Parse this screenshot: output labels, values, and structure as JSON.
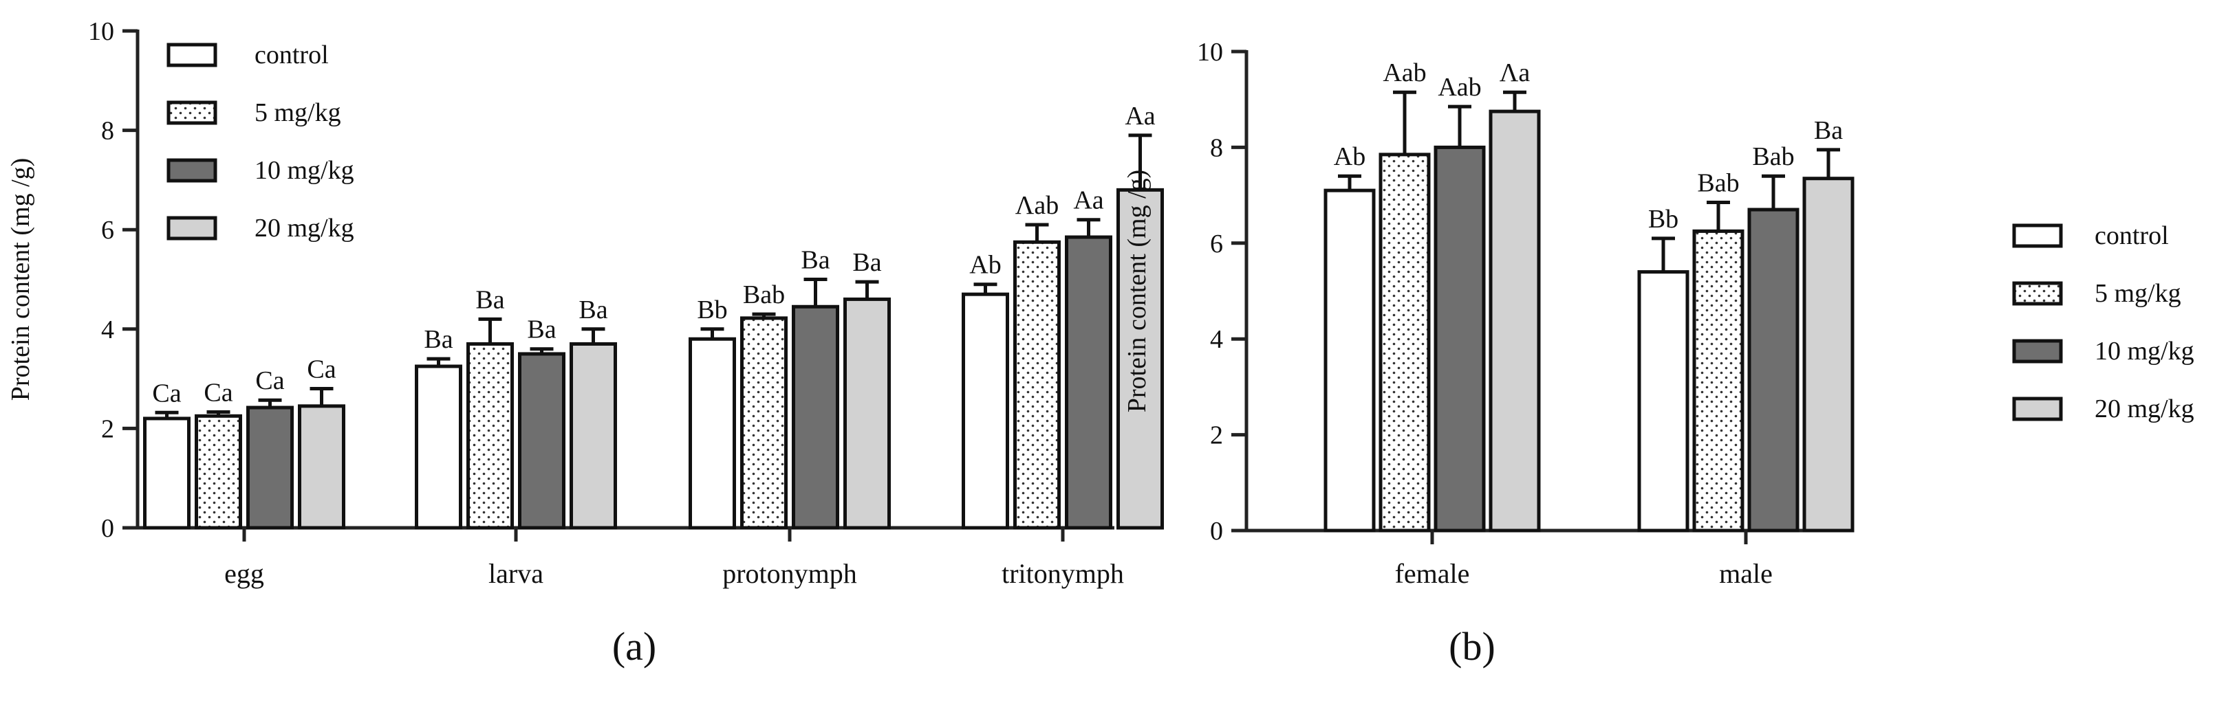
{
  "chart_data": [
    {
      "type": "bar",
      "panel_label": "(a)",
      "ylabel": "Protein content (mg /g)",
      "xlabel": "",
      "ylim": [
        0,
        10
      ],
      "yticks": [
        "0",
        "2",
        "4",
        "6",
        "8",
        "10"
      ],
      "legend_position": "top-left",
      "categories": [
        "egg",
        "larva",
        "protonymph",
        "tritonymph"
      ],
      "series": [
        {
          "name": "control",
          "values": [
            2.2,
            3.25,
            3.8,
            4.7
          ],
          "errors": [
            0.12,
            0.15,
            0.2,
            0.2
          ],
          "labels": [
            "Ca",
            "Ba",
            "Bb",
            "Ab"
          ]
        },
        {
          "name": "5 mg/kg",
          "values": [
            2.25,
            3.7,
            4.22,
            5.75
          ],
          "errors": [
            0.08,
            0.5,
            0.08,
            0.35
          ],
          "labels": [
            "Ca",
            "Ba",
            "Bab",
            "Λab"
          ]
        },
        {
          "name": "10 mg/kg",
          "values": [
            2.42,
            3.5,
            4.45,
            5.85
          ],
          "errors": [
            0.15,
            0.1,
            0.55,
            0.35
          ],
          "labels": [
            "Ca",
            "Ba",
            "Ba",
            "Aa"
          ]
        },
        {
          "name": "20 mg/kg",
          "values": [
            2.45,
            3.7,
            4.6,
            6.8
          ],
          "errors": [
            0.35,
            0.3,
            0.35,
            1.1
          ],
          "labels": [
            "Ca",
            "Ba",
            "Ba",
            "Aa"
          ]
        }
      ]
    },
    {
      "type": "bar",
      "panel_label": "(b)",
      "ylabel": "Protein content (mg /g)",
      "xlabel": "",
      "ylim": [
        0,
        10
      ],
      "yticks": [
        "0",
        "2",
        "4",
        "6",
        "8",
        "10"
      ],
      "legend_position": "right",
      "categories": [
        "female",
        "male"
      ],
      "series": [
        {
          "name": "control",
          "values": [
            7.1,
            5.4
          ],
          "errors": [
            0.3,
            0.7
          ],
          "labels": [
            "Ab",
            "Bb"
          ]
        },
        {
          "name": "5 mg/kg",
          "values": [
            7.85,
            6.25
          ],
          "errors": [
            1.3,
            0.6
          ],
          "labels": [
            "Aab",
            "Bab"
          ]
        },
        {
          "name": "10 mg/kg",
          "values": [
            8.0,
            6.7
          ],
          "errors": [
            0.85,
            0.7
          ],
          "labels": [
            "Aab",
            "Bab"
          ]
        },
        {
          "name": "20 mg/kg",
          "values": [
            8.75,
            7.35
          ],
          "errors": [
            0.4,
            0.6
          ],
          "labels": [
            "Λa",
            "Ba"
          ]
        }
      ]
    }
  ],
  "series_fills": [
    "#ffffff",
    "dots",
    "#6f6f6f",
    "#d2d2d2"
  ]
}
